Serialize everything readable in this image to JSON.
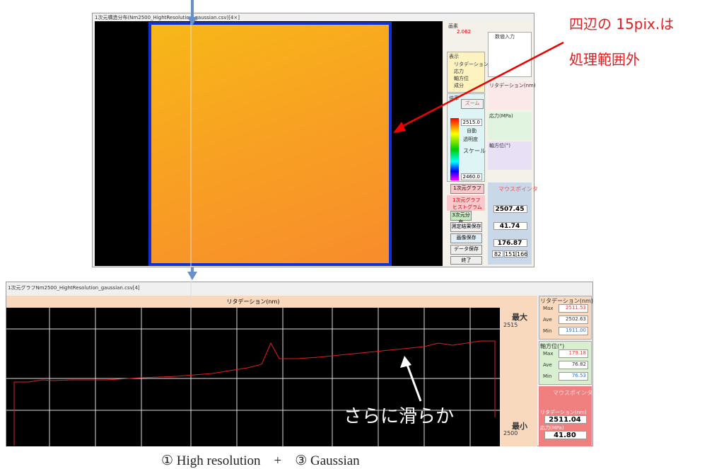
{
  "annotation": {
    "lines": [
      "四辺の 15pix.は",
      "処理範囲外"
    ],
    "smoother": "さらに滑らか",
    "caption": "① High resolution　+　③ Gaussian"
  },
  "top_window": {
    "title": "1次元構造分布(Nm2500_HightResolution_gaussian.csv)[4×]",
    "panel": {
      "pixel": "画素",
      "pixel_value": "2.062",
      "display": "表示",
      "display_items": [
        "リタデーション",
        "応力",
        "軸方位",
        "成分"
      ],
      "zoom_title": "倍率",
      "zoom": "ズーム",
      "scale_max": "2515.0",
      "auto": "自動",
      "transparency": "透明度",
      "scale": "スケール",
      "scale_min": "2460.0",
      "graph1d": "1次元グラフ",
      "graph_opts": [
        "1次元グラフ",
        "ヒストグラム"
      ],
      "dist3d": "3次元分布",
      "save_result": "測定結果保存",
      "save_image": "画像保存",
      "save_data": "データ保存",
      "exit": "終了",
      "numeric": "数値入力",
      "ret_title": "リタデーション(nm)",
      "stress_title": "応力(MPa)",
      "axis_title": "軸方位(°)",
      "mouse": "マウスポインタ",
      "mouse_ret": "2507.45",
      "mouse_stress": "41.74",
      "mouse_axis": "176.87",
      "rgb": [
        "82",
        "151",
        "166"
      ]
    }
  },
  "bottom_window": {
    "title": "1次元グラフNm2500_HightResolution_gaussian.csv[4]",
    "header": "リタデーション(nm)",
    "max_label": "最大",
    "max_value": "2515",
    "min_label": "最小",
    "min_value": "2500",
    "ret_panel": {
      "title": "リタデーション(nm)",
      "rows": [
        [
          "Max",
          "2511.53"
        ],
        [
          "Ave",
          "2502.63"
        ],
        [
          "Min",
          "1911.00"
        ]
      ]
    },
    "axis_panel": {
      "title": "軸方位(°)",
      "rows": [
        [
          "Max",
          "179.18"
        ],
        [
          "Ave",
          "76.82"
        ],
        [
          "Min",
          "76.53"
        ]
      ]
    },
    "mouse": "マウスポインタ",
    "mouse_ret_label": "リタデーション(nm)",
    "mouse_ret": "2511.04",
    "mouse_stress_label": "応力(MPa)",
    "mouse_stress": "41.80"
  }
}
